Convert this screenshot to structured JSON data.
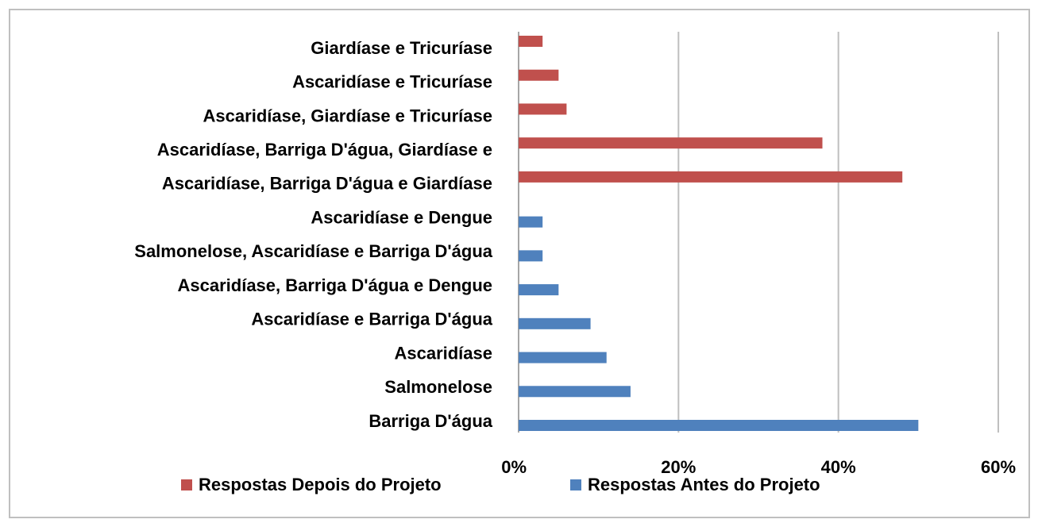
{
  "chart_data": {
    "type": "bar",
    "orientation": "horizontal",
    "categories": [
      "Giardíase e Tricuríase",
      "Ascaridíase e Tricuríase",
      "Ascaridíase, Giardíase e Tricuríase",
      "Ascaridíase, Barriga D'água, Giardíase e",
      "Ascaridíase, Barriga D'água e Giardíase",
      "Ascaridíase e Dengue",
      "Salmonelose, Ascaridíase e Barriga D'água",
      "Ascaridíase, Barriga D'água e Dengue",
      "Ascaridíase e Barriga D'água",
      "Ascaridíase",
      "Salmonelose",
      "Barriga D'água"
    ],
    "series": [
      {
        "name": "Respostas Depois do Projeto",
        "color": "#c0504d",
        "values": [
          3,
          5,
          6,
          38,
          48,
          null,
          null,
          null,
          null,
          null,
          null,
          null
        ]
      },
      {
        "name": "Respostas Antes do Projeto",
        "color": "#4f81bd",
        "values": [
          null,
          null,
          null,
          null,
          null,
          3,
          3,
          5,
          9,
          11,
          14,
          50
        ]
      }
    ],
    "xlim": [
      0,
      60
    ],
    "xticks": [
      {
        "value": 0,
        "label": "0%"
      },
      {
        "value": 20,
        "label": "20%"
      },
      {
        "value": 40,
        "label": "40%"
      },
      {
        "value": 60,
        "label": "60%"
      }
    ],
    "grid": true
  }
}
